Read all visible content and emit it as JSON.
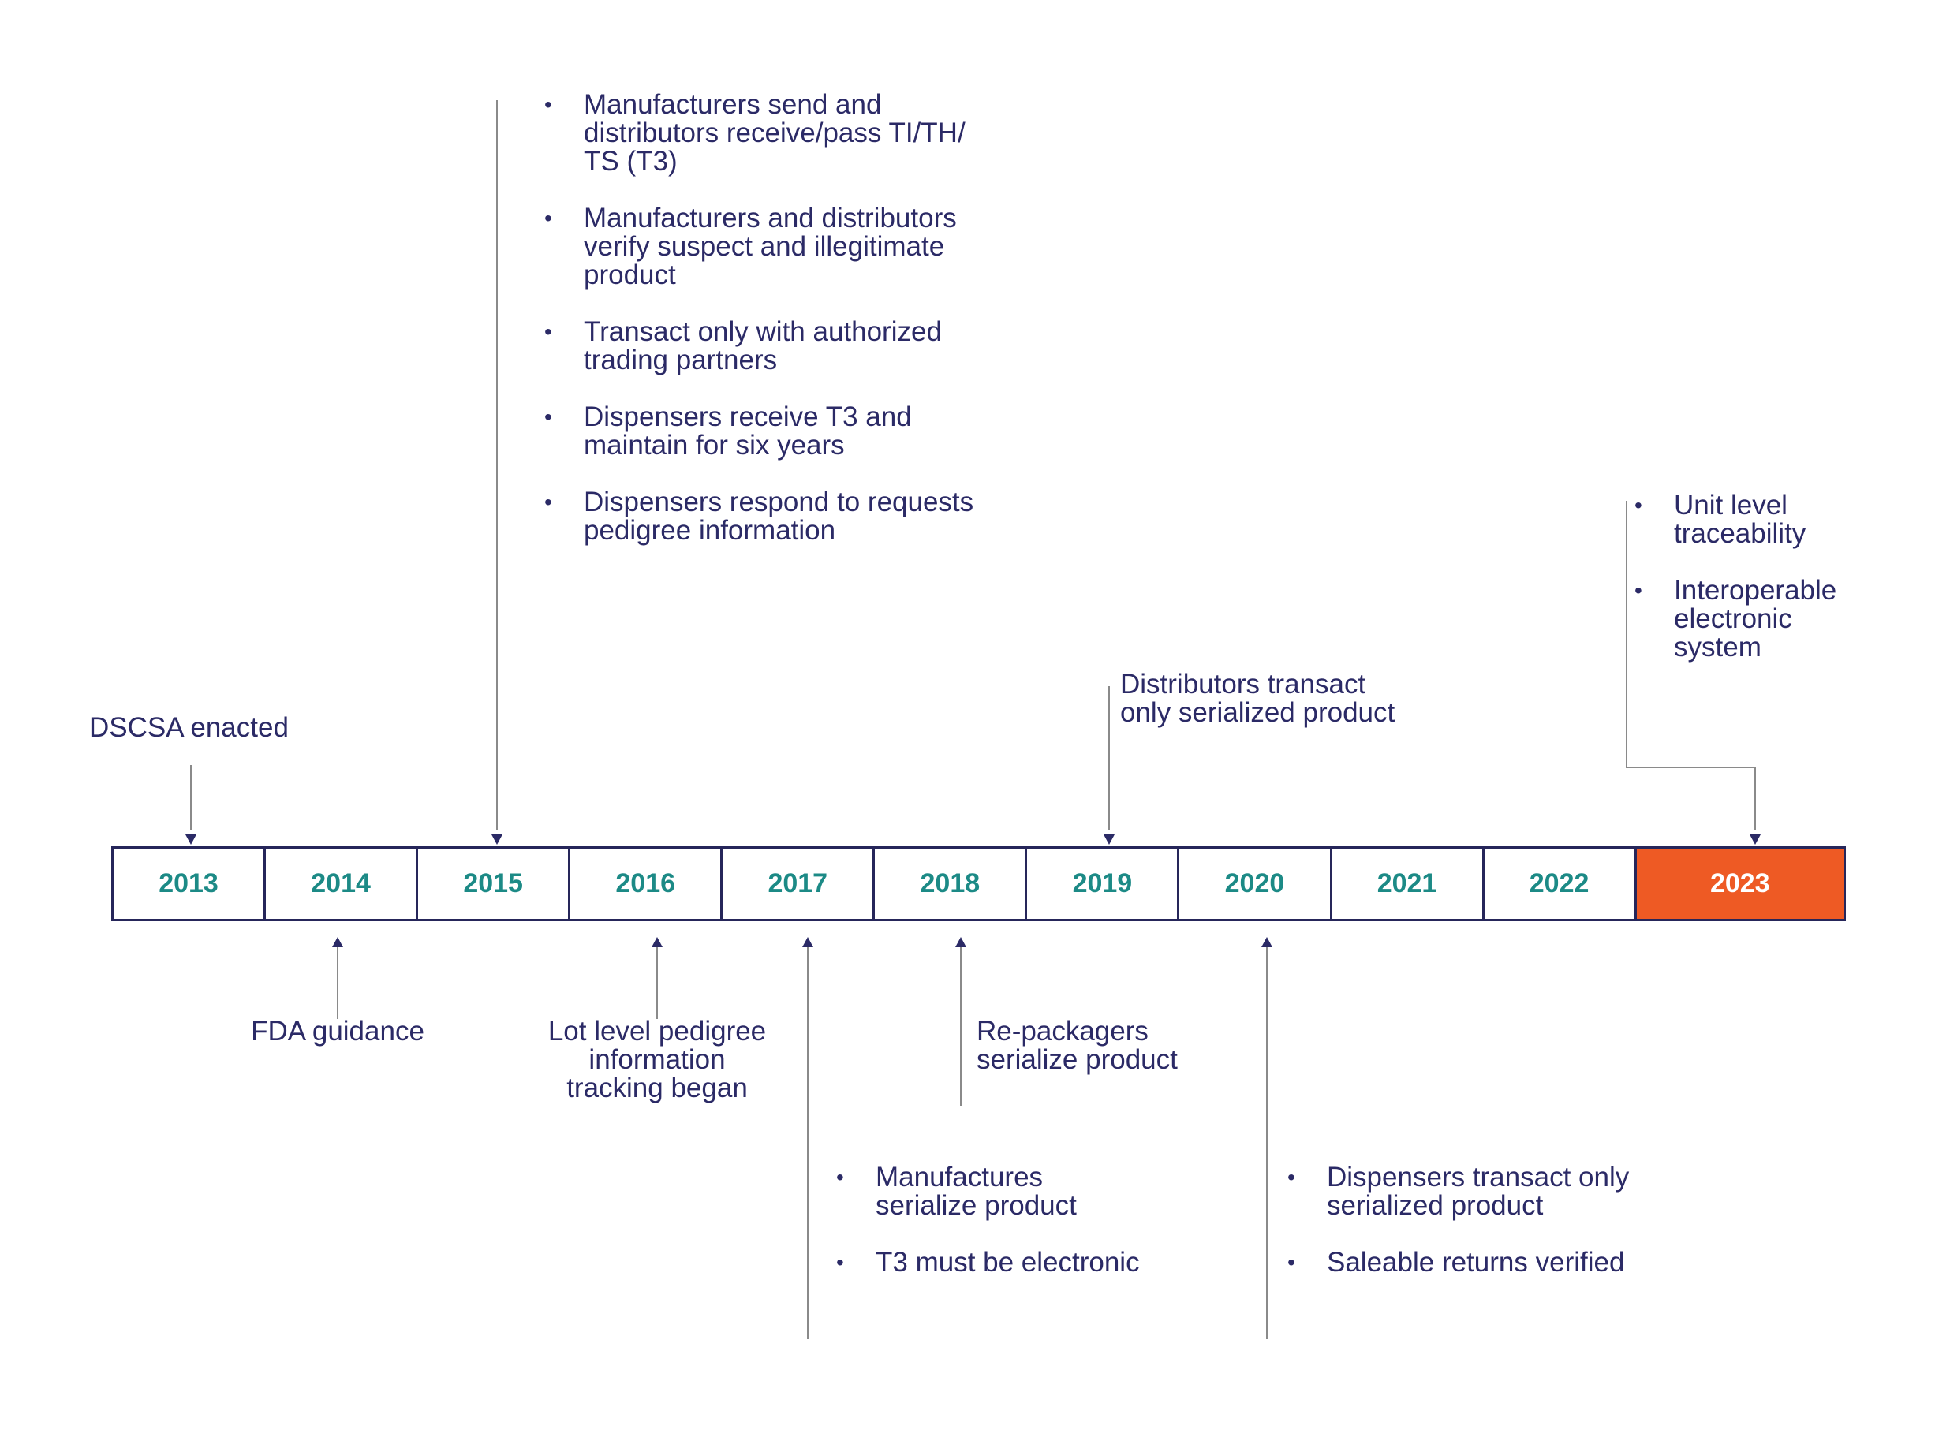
{
  "colors": {
    "navy": "#2b2a66",
    "teal": "#1c8a86",
    "highlight": "#ee5a24",
    "connector": "#8a8a8a"
  },
  "timeline": {
    "years": [
      "2013",
      "2014",
      "2015",
      "2016",
      "2017",
      "2018",
      "2019",
      "2020",
      "2021",
      "2022",
      "2023"
    ],
    "highlighted_year": "2023"
  },
  "events_above": {
    "y2013": "DSCSA enacted",
    "y2015": [
      "Manufacturers send and\ndistributors receive/pass TI/TH/\nTS (T3)",
      " Manufacturers and distributors\nverify suspect and illegitimate\nproduct",
      "Transact only with authorized\ntrading partners",
      "Dispensers receive T3 and\nmaintain for six years",
      "Dispensers respond to requests\npedigree information"
    ],
    "y2019": "Distributors transact\nonly serialized product",
    "y2023": [
      "Unit level\ntraceability",
      "Interoperable\nelectronic\nsystem"
    ]
  },
  "events_below": {
    "y2014": "FDA guidance",
    "y2016": "Lot level pedigree\ninformation\ntracking began",
    "y2017": [
      "Manufactures\nserialize product",
      "T3 must be electronic"
    ],
    "y2018": "Re-packagers\nserialize product",
    "y2020": [
      "Dispensers transact only\nserialized product",
      "Saleable returns verified"
    ]
  }
}
